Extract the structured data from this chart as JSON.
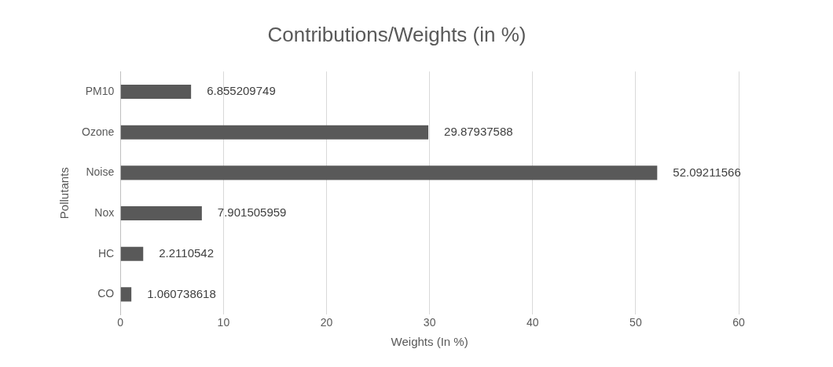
{
  "chart_data": {
    "type": "bar",
    "orientation": "horizontal",
    "title": "Contributions/Weights (in %)",
    "xlabel": "Weights (In %)",
    "ylabel": "Pollutants",
    "categories": [
      "PM10",
      "Ozone",
      "Noise",
      "Nox",
      "HC",
      "CO"
    ],
    "values": [
      6.855209749,
      29.87937588,
      52.09211566,
      7.901505959,
      2.2110542,
      1.060738618
    ],
    "color": "#595959",
    "xlim": [
      0,
      60
    ],
    "xticks": [
      0,
      10,
      20,
      30,
      40,
      50,
      60
    ],
    "grid": "x",
    "data_labels": true
  }
}
